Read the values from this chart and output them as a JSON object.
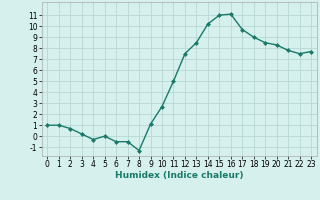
{
  "x": [
    0,
    1,
    2,
    3,
    4,
    5,
    6,
    7,
    8,
    9,
    10,
    11,
    12,
    13,
    14,
    15,
    16,
    17,
    18,
    19,
    20,
    21,
    22,
    23
  ],
  "y": [
    1,
    1,
    0.7,
    0.2,
    -0.3,
    0.0,
    -0.5,
    -0.5,
    -1.3,
    1.1,
    2.7,
    5.0,
    7.5,
    8.5,
    10.2,
    11.0,
    11.1,
    9.7,
    9.0,
    8.5,
    8.3,
    7.8,
    7.5,
    7.7
  ],
  "line_color": "#1a7a6a",
  "marker": "D",
  "markersize": 2,
  "linewidth": 1.0,
  "background_color": "#d6f0ee",
  "grid_color": "#b8d8d4",
  "xlabel": "Humidex (Indice chaleur)",
  "xlim": [
    -0.5,
    23.5
  ],
  "ylim": [
    -1.8,
    12.2
  ],
  "yticks": [
    -1,
    0,
    1,
    2,
    3,
    4,
    5,
    6,
    7,
    8,
    9,
    10,
    11
  ],
  "xticks": [
    0,
    1,
    2,
    3,
    4,
    5,
    6,
    7,
    8,
    9,
    10,
    11,
    12,
    13,
    14,
    15,
    16,
    17,
    18,
    19,
    20,
    21,
    22,
    23
  ],
  "xlabel_fontsize": 6.5,
  "tick_fontsize": 5.5
}
